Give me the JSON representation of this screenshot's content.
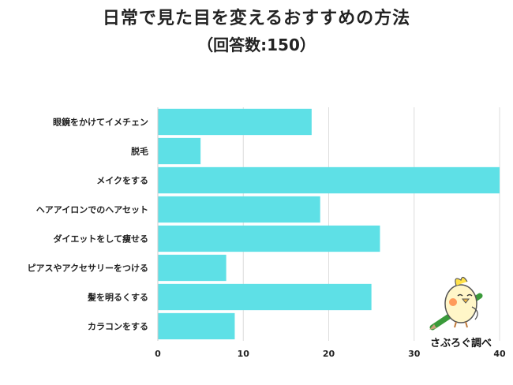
{
  "chart_data": {
    "type": "bar",
    "orientation": "horizontal",
    "title": "日常で見た目を変えるおすすめの方法",
    "subtitle": "（回答数:150）",
    "categories": [
      "眼鏡をかけてイメチェン",
      "脱毛",
      "メイクをする",
      "ヘアアイロンでのヘアセット",
      "ダイエットをして痩せる",
      "ピアスやアクセサリーをつける",
      "髪を明るくする",
      "カラコンをする"
    ],
    "values": [
      18,
      5,
      40,
      19,
      26,
      8,
      25,
      9
    ],
    "xlim": [
      0,
      40
    ],
    "xticks": [
      "0",
      "10",
      "20",
      "30",
      "40"
    ],
    "bar_color": "#5ee0e6",
    "grid": true,
    "legend": "none"
  },
  "credit": "さぶろぐ調べ"
}
